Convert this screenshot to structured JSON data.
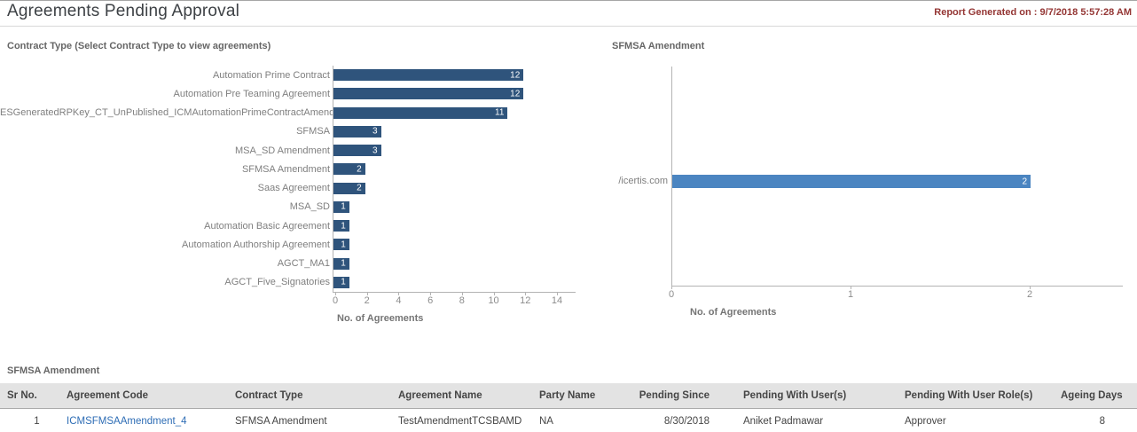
{
  "header": {
    "title": "Agreements Pending Approval",
    "generated_label": "Report Generated on : 9/7/2018 5:57:28 AM"
  },
  "colors": {
    "dark_bar": "#2f547c",
    "light_bar": "#4b85c1",
    "generated_text": "#943634",
    "link": "#2e6db5",
    "table_header_bg": "#e3e3e3"
  },
  "chart_data": [
    {
      "type": "bar",
      "orientation": "horizontal",
      "title": "Contract Type (Select Contract Type to view agreements)",
      "categories": [
        "Automation Prime Contract",
        "Automation Pre Teaming Agreement",
        "ESGeneratedRPKey_CT_UnPublished_ICMAutomationPrimeContractAmendment",
        "SFMSA",
        "MSA_SD Amendment",
        "SFMSA Amendment",
        "Saas Agreement",
        "MSA_SD",
        "Automation Basic Agreement",
        "Automation Authorship Agreement",
        "AGCT_MA1",
        "AGCT_Five_Signatories"
      ],
      "values": [
        12,
        12,
        11,
        3,
        3,
        2,
        2,
        1,
        1,
        1,
        1,
        1
      ],
      "xlabel": "No. of Agreements",
      "xlim": [
        0,
        14
      ],
      "xticks": [
        0,
        2,
        4,
        6,
        8,
        10,
        12,
        14
      ],
      "grid": "off",
      "legend": "none"
    },
    {
      "type": "bar",
      "orientation": "horizontal",
      "title": "SFMSA Amendment",
      "categories": [
        "/icertis.com"
      ],
      "values": [
        2
      ],
      "xlabel": "No. of Agreements",
      "xlim": [
        0,
        2
      ],
      "xticks": [
        0,
        1,
        2
      ],
      "grid": "off",
      "legend": "none"
    }
  ],
  "table": {
    "title": "SFMSA Amendment",
    "columns": [
      "Sr No.",
      "Agreement Code",
      "Contract Type",
      "Agreement Name",
      "Party Name",
      "Pending Since",
      "Pending With User(s)",
      "Pending With User Role(s)",
      "Ageing Days"
    ],
    "rows": [
      [
        "1",
        "ICMSFMSAAmendment_4",
        "SFMSA Amendment",
        "TestAmendmentTCSBAMD",
        "NA",
        "8/30/2018",
        "Aniket Padmawar",
        "Approver",
        "8"
      ]
    ]
  }
}
